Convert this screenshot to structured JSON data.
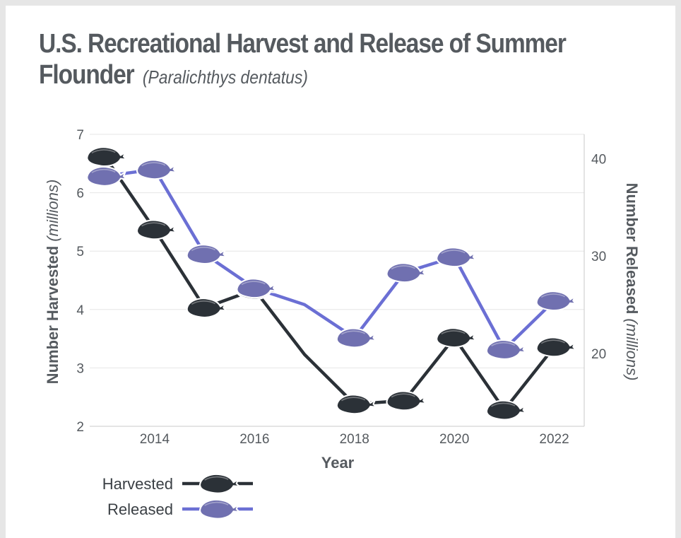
{
  "title_main": "U.S. Recreational Harvest and Release of Summer Flounder",
  "title_sub": "(Paralichthys dentatus)",
  "chart_data": {
    "type": "line",
    "x": [
      2013,
      2014,
      2015,
      2016,
      2017,
      2018,
      2019,
      2020,
      2021,
      2022
    ],
    "xlabel": "Year",
    "x_ticks": [
      "2014",
      "2016",
      "2018",
      "2020",
      "2022"
    ],
    "series": [
      {
        "name": "Harvested",
        "axis": "left",
        "color": "#2b3137",
        "marker": "flounder-icon",
        "values": [
          6.62,
          5.37,
          4.03,
          4.34,
          3.23,
          2.38,
          2.44,
          3.52,
          2.28,
          3.36
        ]
      },
      {
        "name": "Released",
        "axis": "right",
        "color": "#6b6fd4",
        "marker_color": "#7070b0",
        "marker": "flounder-icon",
        "values": [
          38.2,
          38.9,
          30.2,
          26.7,
          25.0,
          21.6,
          28.3,
          29.9,
          20.4,
          25.4
        ]
      }
    ],
    "left_axis": {
      "label_main": "Number Harvested",
      "label_sub": "(millions)",
      "ticks": [
        "2",
        "3",
        "4",
        "5",
        "6",
        "7"
      ],
      "ylim": [
        2,
        7
      ]
    },
    "right_axis": {
      "label_main": "Number Released",
      "label_sub": "(millions)",
      "ticks": [
        "20",
        "30",
        "40"
      ],
      "ylim": [
        12.5,
        42.5
      ]
    },
    "grid": "horizontal",
    "legend_position": "bottom-left"
  }
}
